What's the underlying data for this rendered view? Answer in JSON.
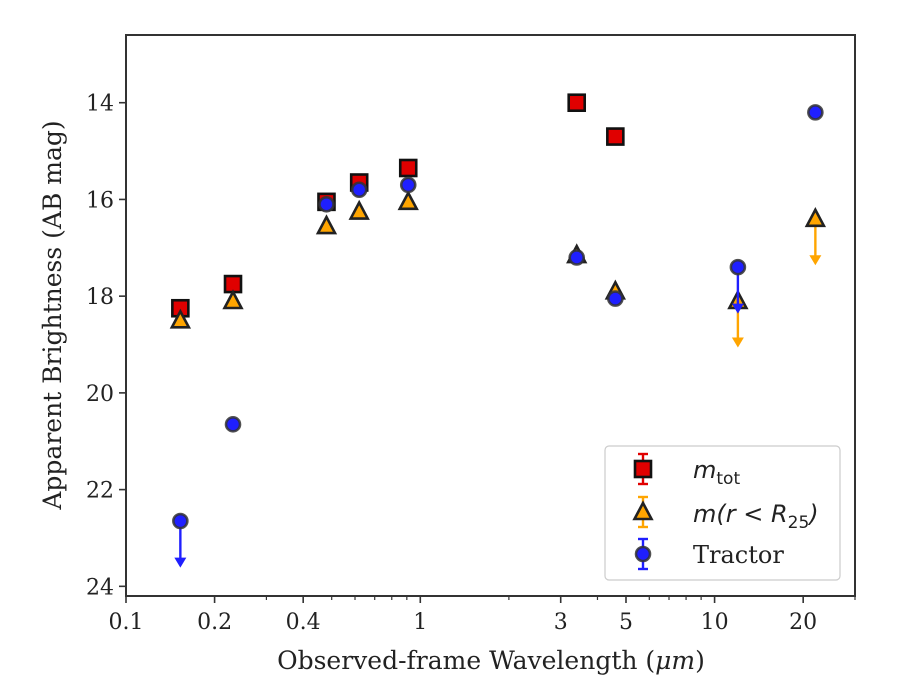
{
  "chart_data": {
    "type": "scatter",
    "xscale": "log",
    "xlim": [
      0.1,
      30
    ],
    "ylim": [
      24.2,
      12.6
    ],
    "yinverted": true,
    "xlabel": "Observed-frame Wavelength (",
    "xlabel_unit": "μm",
    "xlabel_close": ")",
    "ylabel": "Apparent Brightness (AB mag)",
    "xticks": [
      {
        "value": 0.1,
        "label": "0.1"
      },
      {
        "value": 0.2,
        "label": "0.2"
      },
      {
        "value": 0.4,
        "label": "0.4"
      },
      {
        "value": 1,
        "label": "1"
      },
      {
        "value": 3,
        "label": "3"
      },
      {
        "value": 5,
        "label": "5"
      },
      {
        "value": 10,
        "label": "10"
      },
      {
        "value": 20,
        "label": "20"
      }
    ],
    "xminor": [
      0.3,
      0.5,
      0.6,
      0.7,
      0.8,
      0.9,
      2,
      4,
      6,
      7,
      8,
      9,
      30
    ],
    "yticks": [
      {
        "value": 14,
        "label": "14"
      },
      {
        "value": 16,
        "label": "16"
      },
      {
        "value": 18,
        "label": "18"
      },
      {
        "value": 20,
        "label": "20"
      },
      {
        "value": 22,
        "label": "22"
      },
      {
        "value": 24,
        "label": "24"
      }
    ],
    "grid": false,
    "legend_position": "lower-right",
    "series": [
      {
        "name": "m",
        "name_sub": "tot",
        "marker": "square",
        "fill": "#e00000",
        "points": [
          {
            "x": 0.153,
            "y": 18.25
          },
          {
            "x": 0.231,
            "y": 17.75
          },
          {
            "x": 0.48,
            "y": 16.05
          },
          {
            "x": 0.62,
            "y": 15.65
          },
          {
            "x": 0.91,
            "y": 15.35
          },
          {
            "x": 3.4,
            "y": 14.0
          },
          {
            "x": 4.6,
            "y": 14.7
          }
        ]
      },
      {
        "name": "m(r < R",
        "name_sub": "25",
        "name_close": ")",
        "marker": "triangle",
        "fill": "#ffa500",
        "points": [
          {
            "x": 0.153,
            "y": 18.5
          },
          {
            "x": 0.231,
            "y": 18.1
          },
          {
            "x": 0.48,
            "y": 16.55
          },
          {
            "x": 0.62,
            "y": 16.25
          },
          {
            "x": 0.91,
            "y": 16.05
          },
          {
            "x": 3.4,
            "y": 17.15
          },
          {
            "x": 4.6,
            "y": 17.9
          },
          {
            "x": 12,
            "y": 18.1,
            "upper_limit": true,
            "arrow_to": 19.0
          },
          {
            "x": 22,
            "y": 16.4,
            "upper_limit": true,
            "arrow_to": 17.3
          }
        ]
      },
      {
        "name": "Tractor",
        "marker": "circle",
        "fill": "#1f1fff",
        "points": [
          {
            "x": 0.153,
            "y": 22.65,
            "upper_limit": true,
            "arrow_to": 23.55
          },
          {
            "x": 0.231,
            "y": 20.65
          },
          {
            "x": 0.48,
            "y": 16.1
          },
          {
            "x": 0.62,
            "y": 15.8
          },
          {
            "x": 0.91,
            "y": 15.7
          },
          {
            "x": 3.4,
            "y": 17.2
          },
          {
            "x": 4.6,
            "y": 18.05
          },
          {
            "x": 12,
            "y": 17.4,
            "upper_limit": true,
            "arrow_to": 18.3
          },
          {
            "x": 22,
            "y": 14.2
          }
        ]
      }
    ]
  }
}
